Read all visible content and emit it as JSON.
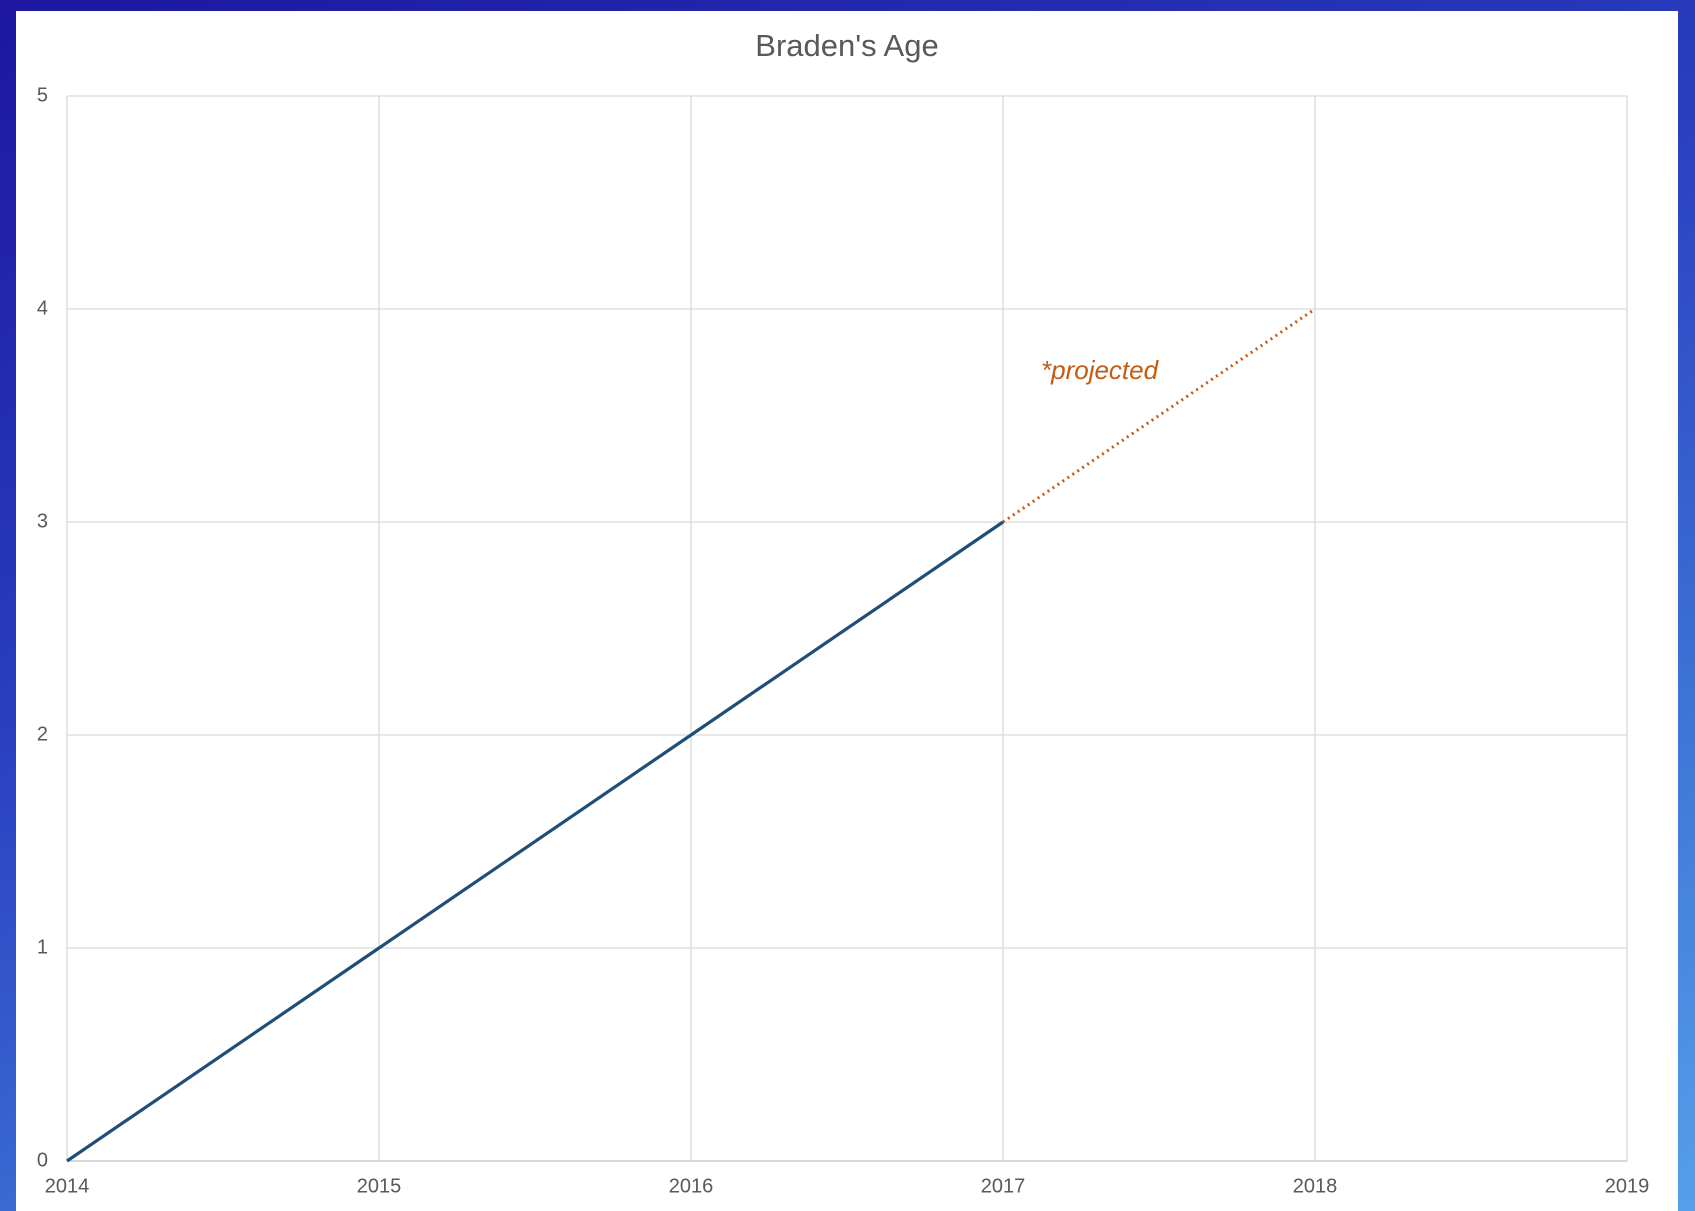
{
  "chart_data": {
    "type": "line",
    "title": "Braden's Age",
    "x": [
      2014,
      2015,
      2016,
      2017,
      2018
    ],
    "series": [
      {
        "color": "#1f4e79",
        "style": "solid",
        "values": [
          0,
          1,
          2,
          3,
          null
        ]
      },
      {
        "color": "#c55a11",
        "style": "dotted",
        "values": [
          null,
          null,
          null,
          3,
          4
        ]
      }
    ],
    "xlim": [
      2014,
      2019
    ],
    "xticks": [
      2014,
      2015,
      2016,
      2017,
      2018,
      2019
    ],
    "ylim": [
      0,
      5
    ],
    "yticks": [
      0,
      1,
      2,
      3,
      4,
      5
    ],
    "grid": true,
    "annotations": [
      "*projected"
    ]
  }
}
